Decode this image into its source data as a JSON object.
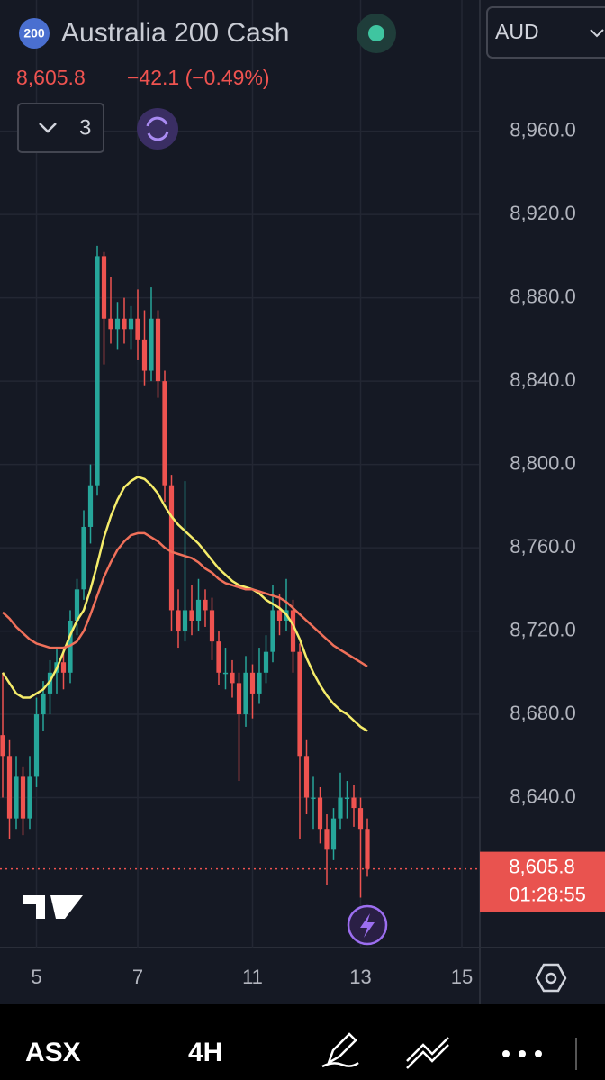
{
  "header": {
    "badge": "200",
    "title": "Australia 200 Cash",
    "price": "8,605.8",
    "change": "−42.1 (−0.49%)",
    "currency": "AUD",
    "indicators": "3"
  },
  "chart_data": {
    "type": "candlestick",
    "categories": [
      null,
      null,
      null,
      null,
      null,
      "5",
      null,
      null,
      null,
      null,
      null,
      null,
      null,
      null,
      null,
      null,
      null,
      null,
      null,
      null,
      "7",
      null,
      null,
      null,
      null,
      null,
      null,
      null,
      null,
      null,
      null,
      null,
      null,
      null,
      null,
      null,
      null,
      "11",
      null,
      null,
      null,
      null,
      null,
      null,
      null,
      null,
      null,
      null,
      null,
      null,
      null,
      null,
      null,
      "13",
      null,
      null,
      null,
      null,
      null,
      null,
      null,
      null,
      null,
      null,
      null,
      null,
      null,
      null,
      "15",
      null,
      null
    ],
    "candles": [
      [
        8670,
        8700,
        8640,
        8660
      ],
      [
        8660,
        8668,
        8620,
        8630
      ],
      [
        8630,
        8660,
        8625,
        8650
      ],
      [
        8650,
        8655,
        8622,
        8630
      ],
      [
        8630,
        8660,
        8625,
        8650
      ],
      [
        8650,
        8688,
        8645,
        8680
      ],
      [
        8680,
        8696,
        8672,
        8690
      ],
      [
        8690,
        8706,
        8680,
        8700
      ],
      [
        8700,
        8712,
        8690,
        8705
      ],
      [
        8705,
        8712,
        8692,
        8700
      ],
      [
        8700,
        8730,
        8695,
        8725
      ],
      [
        8725,
        8745,
        8718,
        8740
      ],
      [
        8740,
        8778,
        8735,
        8770
      ],
      [
        8770,
        8800,
        8762,
        8790
      ],
      [
        8790,
        8905,
        8785,
        8900
      ],
      [
        8900,
        8902,
        8848,
        8870
      ],
      [
        8870,
        8890,
        8858,
        8865
      ],
      [
        8865,
        8878,
        8855,
        8870
      ],
      [
        8870,
        8880,
        8858,
        8865
      ],
      [
        8865,
        8876,
        8855,
        8870
      ],
      [
        8870,
        8884,
        8850,
        8860
      ],
      [
        8860,
        8874,
        8838,
        8845
      ],
      [
        8845,
        8885,
        8840,
        8870
      ],
      [
        8870,
        8874,
        8832,
        8840
      ],
      [
        8840,
        8845,
        8782,
        8790
      ],
      [
        8790,
        8795,
        8720,
        8730
      ],
      [
        8730,
        8740,
        8712,
        8720
      ],
      [
        8720,
        8792,
        8715,
        8730
      ],
      [
        8730,
        8742,
        8718,
        8725
      ],
      [
        8725,
        8745,
        8720,
        8735
      ],
      [
        8735,
        8740,
        8722,
        8730
      ],
      [
        8730,
        8736,
        8706,
        8715
      ],
      [
        8715,
        8720,
        8694,
        8700
      ],
      [
        8700,
        8712,
        8692,
        8700
      ],
      [
        8700,
        8706,
        8688,
        8695
      ],
      [
        8695,
        8700,
        8648,
        8680
      ],
      [
        8680,
        8708,
        8674,
        8700
      ],
      [
        8700,
        8704,
        8678,
        8690
      ],
      [
        8690,
        8712,
        8685,
        8700
      ],
      [
        8700,
        8718,
        8695,
        8710
      ],
      [
        8710,
        8742,
        8705,
        8730
      ],
      [
        8730,
        8738,
        8718,
        8725
      ],
      [
        8725,
        8745,
        8720,
        8730
      ],
      [
        8730,
        8735,
        8700,
        8710
      ],
      [
        8710,
        8714,
        8620,
        8660
      ],
      [
        8660,
        8668,
        8632,
        8640
      ],
      [
        8640,
        8650,
        8625,
        8640
      ],
      [
        8640,
        8645,
        8618,
        8625
      ],
      [
        8625,
        8632,
        8598,
        8615
      ],
      [
        8615,
        8635,
        8610,
        8630
      ],
      [
        8630,
        8652,
        8625,
        8640
      ],
      [
        8640,
        8648,
        8630,
        8640
      ],
      [
        8640,
        8646,
        8626,
        8635
      ],
      [
        8635,
        8640,
        8592,
        8625
      ],
      [
        8625,
        8630,
        8602,
        8605.8
      ],
      null,
      null,
      null,
      null,
      null,
      null,
      null,
      null,
      null,
      null,
      null,
      null,
      null,
      null,
      null,
      null
    ],
    "up_color": "#26a69a",
    "down_color": "#ef5350",
    "series": [
      {
        "color": "#f5ec6a",
        "values": [
          8700,
          8695,
          8690,
          8688,
          8688,
          8690,
          8692,
          8696,
          8702,
          8710,
          8718,
          8725,
          8730,
          8740,
          8752,
          8765,
          8775,
          8783,
          8789,
          8792,
          8794,
          8793,
          8790,
          8786,
          8780,
          8775,
          8771,
          8768,
          8765,
          8762,
          8758,
          8754,
          8750,
          8747,
          8744,
          8742,
          8741,
          8740,
          8738,
          8735,
          8733,
          8731,
          8728,
          8723,
          8716,
          8707,
          8700,
          8694,
          8689,
          8685,
          8682,
          8680,
          8677,
          8674,
          8672,
          null,
          null,
          null,
          null,
          null,
          null,
          null,
          null,
          null,
          null,
          null,
          null,
          null,
          null,
          null,
          null
        ]
      },
      {
        "color": "#f0705a",
        "values": [
          8729,
          8726,
          8722,
          8719,
          8716,
          8714,
          8713,
          8712,
          8712,
          8712,
          8713,
          8715,
          8720,
          8728,
          8737,
          8746,
          8753,
          8759,
          8763,
          8766,
          8767,
          8767,
          8765,
          8763,
          8760,
          8758,
          8757,
          8756,
          8755,
          8753,
          8750,
          8748,
          8745,
          8743,
          8742,
          8741,
          8740,
          8740,
          8739,
          8738,
          8737,
          8736,
          8734,
          8731,
          8728,
          8725,
          8722,
          8719,
          8716,
          8713,
          8711,
          8709,
          8707,
          8705,
          8703,
          null,
          null,
          null,
          null,
          null,
          null,
          null,
          null,
          null,
          null,
          null,
          null,
          null,
          null,
          null,
          null
        ]
      }
    ],
    "ylim": [
      8568,
      9023
    ],
    "yticks": [
      {
        "value": 8640,
        "label": "8,640.0"
      },
      {
        "value": 8680,
        "label": "8,680.0"
      },
      {
        "value": 8720,
        "label": "8,720.0"
      },
      {
        "value": 8760,
        "label": "8,760.0"
      },
      {
        "value": 8800,
        "label": "8,800.0"
      },
      {
        "value": 8840,
        "label": "8,840.0"
      },
      {
        "value": 8880,
        "label": "8,880.0"
      },
      {
        "value": 8920,
        "label": "8,920.0"
      },
      {
        "value": 8960,
        "label": "8,960.0"
      }
    ],
    "grid": true,
    "last_price": {
      "value": 8605.8,
      "label": "8,605.8"
    },
    "countdown": "01:28:55"
  },
  "toolbar": {
    "symbol": "ASX",
    "interval": "4H"
  }
}
